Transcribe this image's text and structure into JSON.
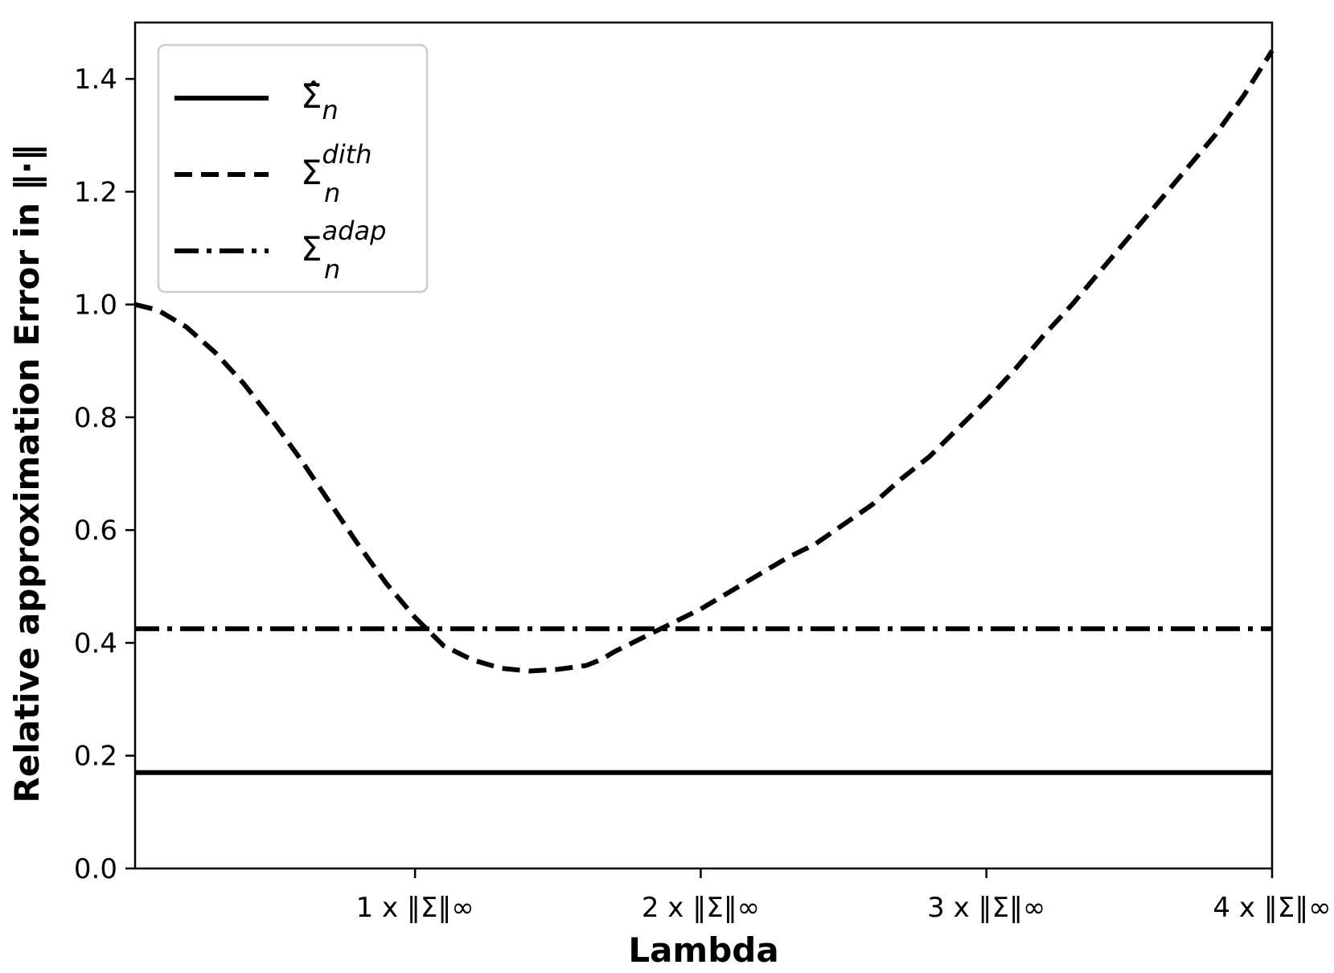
{
  "chart_data": {
    "type": "line",
    "title": "",
    "xlabel": "Lambda",
    "ylabel": "Relative approximation Error in ‖·‖",
    "xlim": [
      0.02,
      4.0
    ],
    "ylim": [
      0.0,
      1.5
    ],
    "grid": false,
    "legend_position": "top-left",
    "x_ticks": [
      {
        "value": 1,
        "label": "1 x ‖Σ‖∞"
      },
      {
        "value": 2,
        "label": "2 x ‖Σ‖∞"
      },
      {
        "value": 3,
        "label": "3 x ‖Σ‖∞"
      },
      {
        "value": 4,
        "label": "4 x ‖Σ‖∞"
      }
    ],
    "y_ticks": [
      {
        "value": 0.0,
        "label": "0.0"
      },
      {
        "value": 0.2,
        "label": "0.2"
      },
      {
        "value": 0.4,
        "label": "0.4"
      },
      {
        "value": 0.6,
        "label": "0.6"
      },
      {
        "value": 0.8,
        "label": "0.8"
      },
      {
        "value": 1.0,
        "label": "1.0"
      },
      {
        "value": 1.2,
        "label": "1.2"
      },
      {
        "value": 1.4,
        "label": "1.4"
      }
    ],
    "series": [
      {
        "name": "Σ̂_n",
        "legend_base": "Σ̂",
        "legend_sub": "n",
        "legend_sup": "",
        "style": "solid",
        "x": [
          0.02,
          4.0
        ],
        "y": [
          0.17,
          0.17
        ]
      },
      {
        "name": "Σ_n^dith",
        "legend_base": "Σ",
        "legend_sub": "n",
        "legend_sup": "dith",
        "style": "dashed",
        "x": [
          0.02,
          0.1,
          0.2,
          0.3,
          0.4,
          0.5,
          0.6,
          0.7,
          0.8,
          0.9,
          1.0,
          1.1,
          1.2,
          1.3,
          1.4,
          1.5,
          1.6,
          1.65,
          1.7,
          1.8,
          1.9,
          2.0,
          2.1,
          2.2,
          2.3,
          2.4,
          2.5,
          2.6,
          2.7,
          2.8,
          2.9,
          3.0,
          3.1,
          3.2,
          3.3,
          3.4,
          3.5,
          3.6,
          3.7,
          3.8,
          3.9,
          4.0
        ],
        "y": [
          1.0,
          0.99,
          0.96,
          0.915,
          0.86,
          0.795,
          0.725,
          0.65,
          0.575,
          0.505,
          0.445,
          0.395,
          0.37,
          0.355,
          0.35,
          0.353,
          0.36,
          0.37,
          0.385,
          0.41,
          0.435,
          0.46,
          0.49,
          0.52,
          0.55,
          0.575,
          0.61,
          0.645,
          0.69,
          0.73,
          0.78,
          0.83,
          0.885,
          0.945,
          1.0,
          1.06,
          1.12,
          1.18,
          1.24,
          1.3,
          1.37,
          1.45
        ]
      },
      {
        "name": "Σ_n^adap",
        "legend_base": "Σ",
        "legend_sub": "n",
        "legend_sup": "adap",
        "style": "dashdot",
        "x": [
          0.02,
          4.0
        ],
        "y": [
          0.425,
          0.425
        ]
      }
    ]
  }
}
